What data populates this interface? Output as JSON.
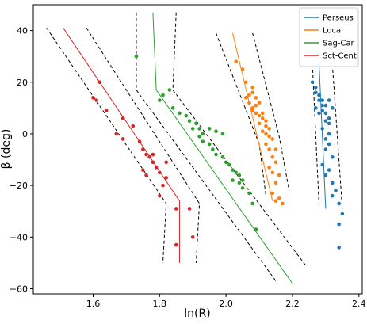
{
  "chart_data": {
    "type": "scatter",
    "xlabel": "ln(R)",
    "ylabel": "β (deg)",
    "xlim": [
      1.42,
      2.41
    ],
    "ylim": [
      -62,
      50
    ],
    "xticks": [
      "1.6",
      "1.8",
      "2.0",
      "2.2",
      "2.4"
    ],
    "yticks": [
      "−60",
      "−40",
      "−20",
      "0",
      "20",
      "40"
    ],
    "legend_position": "top-right",
    "series": [
      {
        "name": "Perseus",
        "color": "#1f77b4",
        "fit_line": [
          [
            2.28,
            27
          ],
          [
            2.3,
            -29
          ]
        ],
        "bounds": [
          [
            [
              2.26,
              27
            ],
            [
              2.28,
              -28
            ]
          ],
          [
            [
              2.32,
              27
            ],
            [
              2.35,
              -29
            ]
          ]
        ],
        "points": [
          [
            2.28,
            27
          ],
          [
            2.26,
            20
          ],
          [
            2.27,
            18
          ],
          [
            2.27,
            16
          ],
          [
            2.28,
            15
          ],
          [
            2.28,
            13
          ],
          [
            2.29,
            13
          ],
          [
            2.29,
            11
          ],
          [
            2.3,
            11
          ],
          [
            2.29,
            9
          ],
          [
            2.3,
            8
          ],
          [
            2.31,
            13
          ],
          [
            2.31,
            6
          ],
          [
            2.31,
            4
          ],
          [
            2.29,
            2
          ],
          [
            2.31,
            0
          ],
          [
            2.3,
            -2
          ],
          [
            2.31,
            -4
          ],
          [
            2.3,
            -6
          ],
          [
            2.32,
            -9
          ],
          [
            2.29,
            -12
          ],
          [
            2.31,
            -14
          ],
          [
            2.3,
            -16
          ],
          [
            2.32,
            -19
          ],
          [
            2.33,
            -22
          ],
          [
            2.32,
            -24
          ],
          [
            2.34,
            -27
          ],
          [
            2.34,
            -35
          ],
          [
            2.35,
            -31
          ],
          [
            2.34,
            -44
          ],
          [
            2.27,
            10
          ],
          [
            2.28,
            8
          ],
          [
            2.32,
            10
          ],
          [
            2.3,
            5
          ]
        ]
      },
      {
        "name": "Local",
        "color": "#ff7f0e",
        "fit_line": [
          [
            2.02,
            39
          ],
          [
            2.14,
            -26
          ]
        ],
        "bounds": [
          [
            [
              1.97,
              39
            ],
            [
              2.1,
              -4
            ],
            [
              2.12,
              -24
            ]
          ],
          [
            [
              2.08,
              39
            ],
            [
              2.16,
              -1
            ],
            [
              2.19,
              -22
            ]
          ]
        ],
        "points": [
          [
            2.03,
            28
          ],
          [
            2.05,
            25
          ],
          [
            2.06,
            20
          ],
          [
            2.08,
            18
          ],
          [
            2.08,
            16
          ],
          [
            2.07,
            15
          ],
          [
            2.06,
            14
          ],
          [
            2.09,
            14
          ],
          [
            2.07,
            12
          ],
          [
            2.1,
            12
          ],
          [
            2.08,
            10
          ],
          [
            2.08,
            9
          ],
          [
            2.09,
            8
          ],
          [
            2.11,
            8
          ],
          [
            2.11,
            6
          ],
          [
            2.1,
            4
          ],
          [
            2.12,
            5
          ],
          [
            2.12,
            3
          ],
          [
            2.13,
            2
          ],
          [
            2.11,
            1
          ],
          [
            2.12,
            0
          ],
          [
            2.13,
            -1
          ],
          [
            2.14,
            -2
          ],
          [
            2.12,
            -4
          ],
          [
            2.13,
            -6
          ],
          [
            2.15,
            -6
          ],
          [
            2.14,
            -9
          ],
          [
            2.15,
            -11
          ],
          [
            2.13,
            -13
          ],
          [
            2.14,
            -15
          ],
          [
            2.16,
            -16
          ],
          [
            2.15,
            -19
          ],
          [
            2.14,
            -23
          ],
          [
            2.15,
            -26
          ],
          [
            2.17,
            -27
          ],
          [
            2.16,
            -25
          ],
          [
            2.09,
            11
          ],
          [
            2.1,
            7
          ]
        ]
      },
      {
        "name": "Sag-Car",
        "color": "#2ca02c",
        "fit_line": [
          [
            1.78,
            47
          ],
          [
            1.79,
            17
          ],
          [
            2.2,
            -58
          ]
        ],
        "bounds": [
          [
            [
              1.73,
              47
            ],
            [
              1.73,
              17
            ],
            [
              2.15,
              -57
            ]
          ],
          [
            [
              1.85,
              47
            ],
            [
              1.84,
              17
            ],
            [
              2.24,
              -51
            ]
          ]
        ],
        "points": [
          [
            1.73,
            30
          ],
          [
            1.83,
            17
          ],
          [
            1.81,
            15
          ],
          [
            1.8,
            13
          ],
          [
            1.84,
            10
          ],
          [
            1.86,
            8
          ],
          [
            1.88,
            7
          ],
          [
            1.89,
            5
          ],
          [
            1.91,
            4
          ],
          [
            1.9,
            2
          ],
          [
            1.92,
            2
          ],
          [
            1.93,
            0
          ],
          [
            1.92,
            -1
          ],
          [
            1.93,
            -3
          ],
          [
            1.95,
            -4
          ],
          [
            1.96,
            -6
          ],
          [
            1.97,
            -8
          ],
          [
            1.99,
            -9
          ],
          [
            2.0,
            -11
          ],
          [
            2.01,
            -12
          ],
          [
            2.02,
            -14
          ],
          [
            2.03,
            -15
          ],
          [
            2.04,
            -16
          ],
          [
            2.05,
            -18
          ],
          [
            2.02,
            -18
          ],
          [
            2.04,
            -19
          ],
          [
            2.05,
            -21
          ],
          [
            2.07,
            -23
          ],
          [
            2.08,
            -27
          ],
          [
            2.09,
            -37
          ],
          [
            1.95,
            2
          ],
          [
            1.97,
            1
          ],
          [
            1.99,
            0
          ]
        ]
      },
      {
        "name": "Sct-Cent",
        "color": "#d62728",
        "fit_line": [
          [
            1.51,
            41
          ],
          [
            1.86,
            -26
          ],
          [
            1.86,
            -50
          ]
        ],
        "bounds": [
          [
            [
              1.46,
              41
            ],
            [
              1.82,
              -27
            ],
            [
              1.81,
              -50
            ]
          ],
          [
            [
              1.58,
              41
            ],
            [
              1.92,
              -27
            ],
            [
              1.91,
              -50
            ]
          ]
        ],
        "points": [
          [
            1.62,
            20
          ],
          [
            1.6,
            14
          ],
          [
            1.61,
            13
          ],
          [
            1.64,
            9
          ],
          [
            1.69,
            6
          ],
          [
            1.72,
            3
          ],
          [
            1.67,
            0
          ],
          [
            1.69,
            -2
          ],
          [
            1.74,
            -3
          ],
          [
            1.75,
            -6
          ],
          [
            1.76,
            -8
          ],
          [
            1.77,
            -9
          ],
          [
            1.78,
            -11
          ],
          [
            1.79,
            -13
          ],
          [
            1.75,
            -14
          ],
          [
            1.8,
            -15
          ],
          [
            1.82,
            -17
          ],
          [
            1.76,
            -16
          ],
          [
            1.81,
            -20
          ],
          [
            1.8,
            -24
          ],
          [
            1.89,
            -29
          ],
          [
            1.85,
            -29
          ],
          [
            1.9,
            -40
          ],
          [
            1.85,
            -43
          ],
          [
            1.78,
            -8
          ],
          [
            1.82,
            -11
          ]
        ]
      }
    ]
  }
}
